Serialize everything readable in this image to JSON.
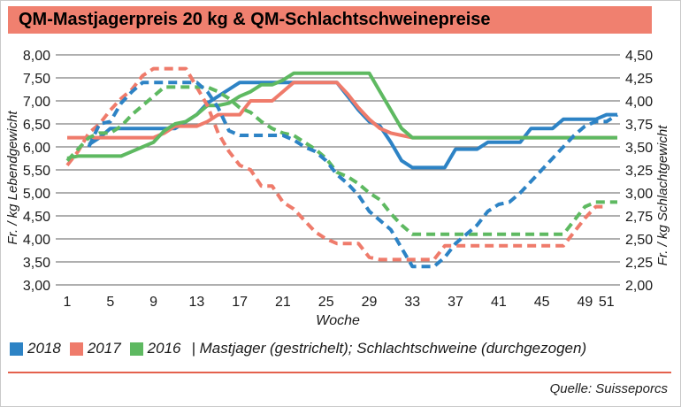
{
  "title": "QM-Mastjagerpreis 20 kg & QM-Schlachtschweinepreise",
  "source": "Quelle: Suisseporcs",
  "legend": {
    "years": [
      {
        "label": "2018",
        "color": "#2d83c5"
      },
      {
        "label": "2017",
        "color": "#ef7b6b"
      },
      {
        "label": "2016",
        "color": "#5eb961"
      }
    ],
    "note": "| Mastjager (gestrichelt); Schlachtschweine (durchgezogen)"
  },
  "chart_data": {
    "type": "line",
    "x_label": "Woche",
    "x_ticks": [
      1,
      5,
      9,
      13,
      17,
      21,
      25,
      29,
      33,
      37,
      41,
      45,
      49,
      51
    ],
    "x_range": [
      1,
      52
    ],
    "grid": true,
    "y_left": {
      "label": "Fr. / kg Lebendgewicht",
      "range": [
        3.0,
        8.0
      ],
      "ticks": [
        "8,00",
        "7,50",
        "7,00",
        "6,50",
        "6,00",
        "5,50",
        "5,00",
        "4,50",
        "4,00",
        "3,50",
        "3,00"
      ]
    },
    "y_right": {
      "label": "Fr. / kg Schlachtgewicht",
      "range": [
        2.0,
        4.5
      ],
      "ticks": [
        "4,50",
        "4,25",
        "4,00",
        "3,75",
        "3,50",
        "3,25",
        "3,00",
        "2,75",
        "2,50",
        "2,25",
        "2,00"
      ]
    },
    "series": [
      {
        "name": "Schlachtschweine 2018",
        "year": "2018",
        "style": "solid",
        "color": "#2d83c5",
        "values": [
          null,
          null,
          6.05,
          6.2,
          6.4,
          6.4,
          6.4,
          6.4,
          6.4,
          6.4,
          6.4,
          6.55,
          6.7,
          6.95,
          7.1,
          7.25,
          7.4,
          7.4,
          7.4,
          7.4,
          7.4,
          7.4,
          7.4,
          7.4,
          7.4,
          7.4,
          7.1,
          6.8,
          6.55,
          6.45,
          6.1,
          5.7,
          5.55,
          5.55,
          5.55,
          5.55,
          5.95,
          5.95,
          5.95,
          6.1,
          6.1,
          6.1,
          6.1,
          6.4,
          6.4,
          6.4,
          6.6,
          6.6,
          6.6,
          6.6,
          6.7,
          6.7
        ]
      },
      {
        "name": "Schlachtschweine 2017",
        "year": "2017",
        "style": "solid",
        "color": "#ef7b6b",
        "values": [
          6.2,
          6.2,
          6.2,
          6.2,
          6.2,
          6.2,
          6.2,
          6.2,
          6.2,
          6.3,
          6.45,
          6.45,
          6.45,
          6.55,
          6.7,
          6.7,
          6.7,
          7.0,
          7.0,
          7.0,
          7.2,
          7.4,
          7.4,
          7.4,
          7.4,
          7.4,
          7.15,
          6.85,
          6.6,
          6.4,
          6.3,
          6.25,
          6.2,
          6.2,
          6.2,
          6.2,
          6.2,
          6.2,
          6.2,
          6.2,
          6.2,
          6.2,
          6.2,
          6.2,
          6.2,
          6.2,
          6.2,
          6.2,
          6.2,
          6.2,
          6.2,
          6.2
        ]
      },
      {
        "name": "Schlachtschweine 2016",
        "year": "2016",
        "style": "solid",
        "color": "#5eb961",
        "values": [
          5.75,
          5.8,
          5.8,
          5.8,
          5.8,
          5.8,
          5.9,
          6.0,
          6.1,
          6.35,
          6.5,
          6.55,
          6.7,
          6.9,
          6.9,
          6.95,
          7.1,
          7.2,
          7.35,
          7.35,
          7.45,
          7.6,
          7.6,
          7.6,
          7.6,
          7.6,
          7.6,
          7.6,
          7.6,
          7.2,
          6.8,
          6.4,
          6.2,
          6.2,
          6.2,
          6.2,
          6.2,
          6.2,
          6.2,
          6.2,
          6.2,
          6.2,
          6.2,
          6.2,
          6.2,
          6.2,
          6.2,
          6.2,
          6.2,
          6.2,
          6.2,
          6.2
        ]
      },
      {
        "name": "Mastjager 2017",
        "year": "2017",
        "style": "dashed",
        "color": "#ef7b6b",
        "values": [
          5.6,
          5.9,
          6.3,
          6.5,
          6.8,
          7.05,
          7.25,
          7.55,
          7.7,
          7.7,
          7.7,
          7.7,
          7.3,
          6.9,
          6.3,
          5.9,
          5.6,
          5.5,
          5.15,
          5.15,
          4.8,
          4.65,
          4.4,
          4.15,
          4.0,
          3.9,
          3.9,
          3.9,
          3.6,
          3.55,
          3.55,
          3.55,
          3.55,
          3.55,
          3.55,
          3.85,
          3.85,
          3.85,
          3.85,
          3.85,
          3.85,
          3.85,
          3.85,
          3.85,
          3.85,
          3.85,
          3.85,
          4.15,
          4.45,
          4.7,
          4.7,
          null
        ]
      },
      {
        "name": "Mastjager 2016",
        "year": "2016",
        "style": "dashed",
        "color": "#5eb961",
        "values": [
          5.7,
          5.95,
          6.2,
          6.3,
          6.3,
          6.45,
          6.7,
          6.9,
          7.1,
          7.3,
          7.3,
          7.3,
          7.3,
          7.3,
          7.2,
          7.05,
          6.85,
          6.75,
          6.55,
          6.4,
          6.3,
          6.25,
          6.1,
          5.95,
          5.75,
          5.45,
          5.35,
          5.2,
          5.0,
          4.85,
          4.55,
          4.3,
          4.1,
          4.1,
          4.1,
          4.1,
          4.1,
          4.1,
          4.1,
          4.1,
          4.1,
          4.1,
          4.1,
          4.1,
          4.1,
          4.1,
          4.1,
          4.4,
          4.7,
          4.8,
          4.8,
          4.8
        ]
      },
      {
        "name": "Mastjager 2018",
        "year": "2018",
        "style": "dashed",
        "color": "#2d83c5",
        "values": [
          null,
          null,
          6.0,
          6.5,
          6.55,
          6.95,
          7.2,
          7.4,
          7.4,
          7.4,
          7.4,
          7.4,
          7.4,
          7.2,
          6.85,
          6.35,
          6.25,
          6.25,
          6.25,
          6.25,
          6.25,
          6.15,
          6.0,
          5.9,
          5.7,
          5.4,
          5.2,
          4.95,
          4.6,
          4.4,
          4.2,
          3.8,
          3.4,
          3.4,
          3.4,
          3.6,
          3.9,
          4.1,
          4.3,
          4.6,
          4.75,
          4.8,
          5.0,
          5.25,
          5.5,
          5.75,
          6.0,
          6.25,
          6.45,
          6.55,
          6.55,
          6.7
        ]
      }
    ]
  }
}
